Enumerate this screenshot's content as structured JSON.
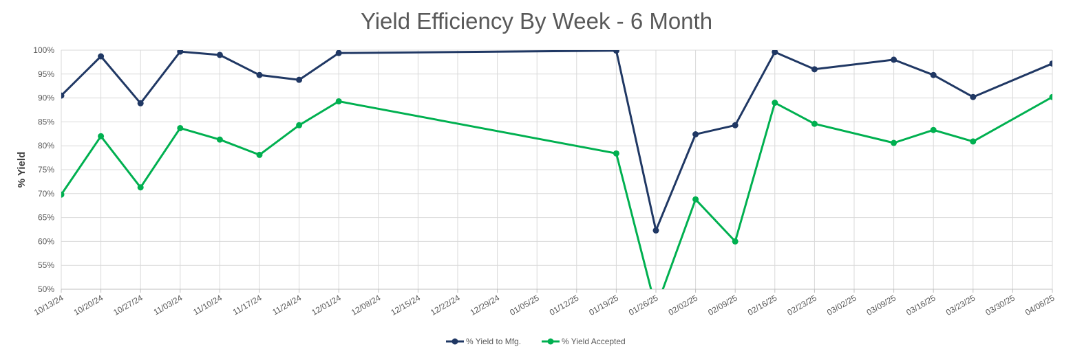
{
  "chart_data": {
    "type": "line",
    "title": "Yield Efficiency By Week - 6 Month",
    "xlabel": "",
    "ylabel": "% Yield",
    "categories": [
      "10/13/24",
      "10/20/24",
      "10/27/24",
      "11/03/24",
      "11/10/24",
      "11/17/24",
      "11/24/24",
      "12/01/24",
      "12/08/24",
      "12/15/24",
      "12/22/24",
      "12/29/24",
      "01/05/25",
      "01/12/25",
      "01/19/25",
      "01/26/25",
      "02/02/25",
      "02/09/25",
      "02/16/25",
      "02/23/25",
      "03/02/25",
      "03/09/25",
      "03/16/25",
      "03/23/25",
      "03/30/25",
      "04/06/25"
    ],
    "y_ticks": [
      "100%",
      "95%",
      "90%",
      "85%",
      "80%",
      "75%",
      "70%",
      "65%",
      "60%",
      "55%",
      "50%"
    ],
    "ylim": [
      50,
      100
    ],
    "grid": true,
    "legend_position": "bottom",
    "series": [
      {
        "name": "% Yield to Mfg.",
        "color": "#203864",
        "values": [
          90.5,
          98.7,
          88.9,
          99.7,
          99.0,
          94.8,
          93.8,
          99.4,
          null,
          null,
          null,
          null,
          null,
          null,
          99.9,
          62.3,
          82.4,
          84.3,
          99.6,
          96.0,
          null,
          98.0,
          94.8,
          90.2,
          null,
          97.2
        ]
      },
      {
        "name": "% Yield Accepted",
        "color": "#00b050",
        "values": [
          69.8,
          82.0,
          71.3,
          83.7,
          81.3,
          78.1,
          84.3,
          89.3,
          null,
          null,
          null,
          null,
          null,
          null,
          78.4,
          46.0,
          68.8,
          60.0,
          89.0,
          84.6,
          null,
          80.6,
          83.3,
          80.9,
          null,
          90.2
        ]
      }
    ]
  }
}
